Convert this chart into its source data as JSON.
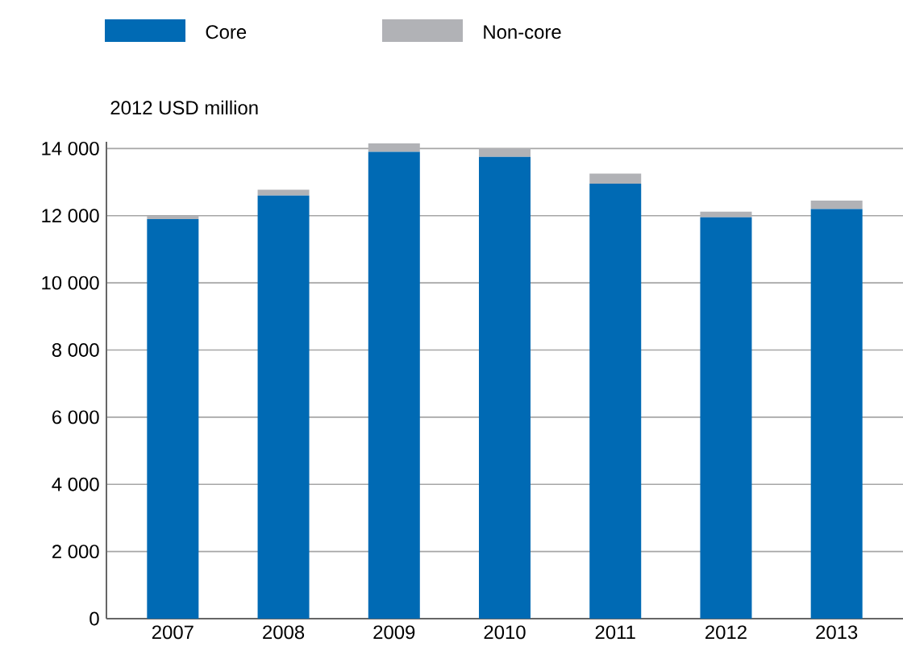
{
  "chart_data": {
    "type": "bar",
    "stacked": true,
    "ylabel": "2012 USD million",
    "categories": [
      "2007",
      "2008",
      "2009",
      "2010",
      "2011",
      "2012",
      "2013"
    ],
    "series": [
      {
        "name": "Core",
        "color": "#006ab4",
        "values": [
          11900,
          12600,
          13900,
          13750,
          12950,
          11950,
          12200
        ]
      },
      {
        "name": "Non-core",
        "color": "#b1b2b6",
        "values": [
          100,
          170,
          250,
          250,
          300,
          170,
          250
        ]
      }
    ],
    "ylim": [
      0,
      14200
    ],
    "yticks": [
      {
        "value": 0,
        "label": "0"
      },
      {
        "value": 2000,
        "label": "2 000"
      },
      {
        "value": 4000,
        "label": "4 000"
      },
      {
        "value": 6000,
        "label": "6 000"
      },
      {
        "value": 8000,
        "label": "8 000"
      },
      {
        "value": 10000,
        "label": "10 000"
      },
      {
        "value": 12000,
        "label": "12 000"
      },
      {
        "value": 14000,
        "label": "14 000"
      }
    ],
    "grid": "y",
    "legend": "top left"
  }
}
